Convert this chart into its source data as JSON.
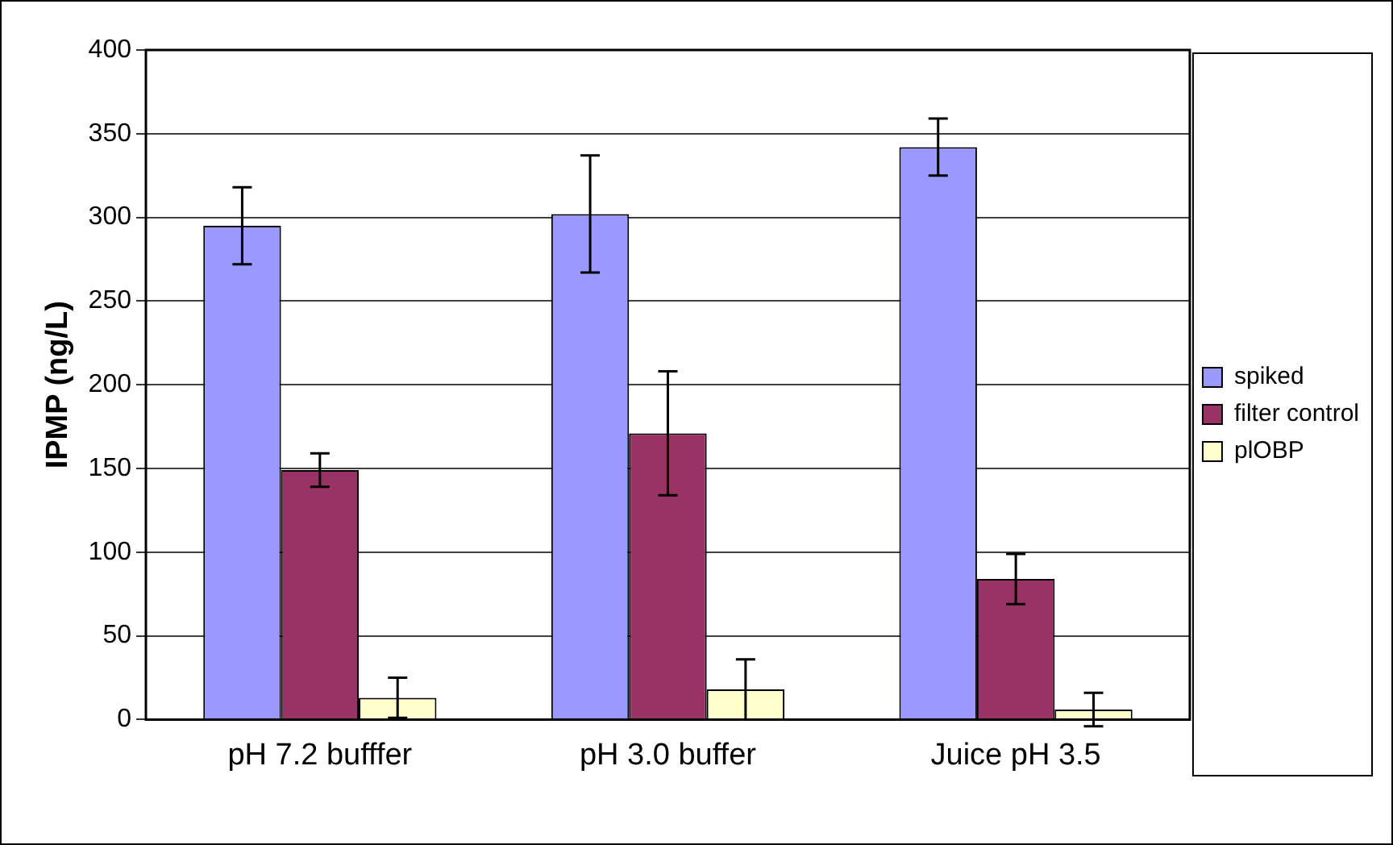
{
  "chart_data": {
    "type": "bar",
    "ylabel": "IPMP (ng/L)",
    "categories": [
      "pH 7.2 bufffer",
      "pH 3.0 buffer",
      "Juice pH 3.5"
    ],
    "series": [
      {
        "name": "spiked",
        "color": "#9999ff",
        "values": [
          295,
          302,
          342
        ],
        "errors": [
          23,
          35,
          17
        ]
      },
      {
        "name": "filter control",
        "color": "#993366",
        "values": [
          149,
          171,
          84
        ],
        "errors": [
          10,
          37,
          15
        ]
      },
      {
        "name": "plOBP",
        "color": "#ffffcc",
        "values": [
          13,
          18,
          6
        ],
        "errors": [
          12,
          18,
          10
        ]
      }
    ],
    "ylim": [
      0,
      400
    ],
    "yticks": [
      0,
      50,
      100,
      150,
      200,
      250,
      300,
      350,
      400
    ],
    "grid": "y",
    "legend": "right"
  }
}
